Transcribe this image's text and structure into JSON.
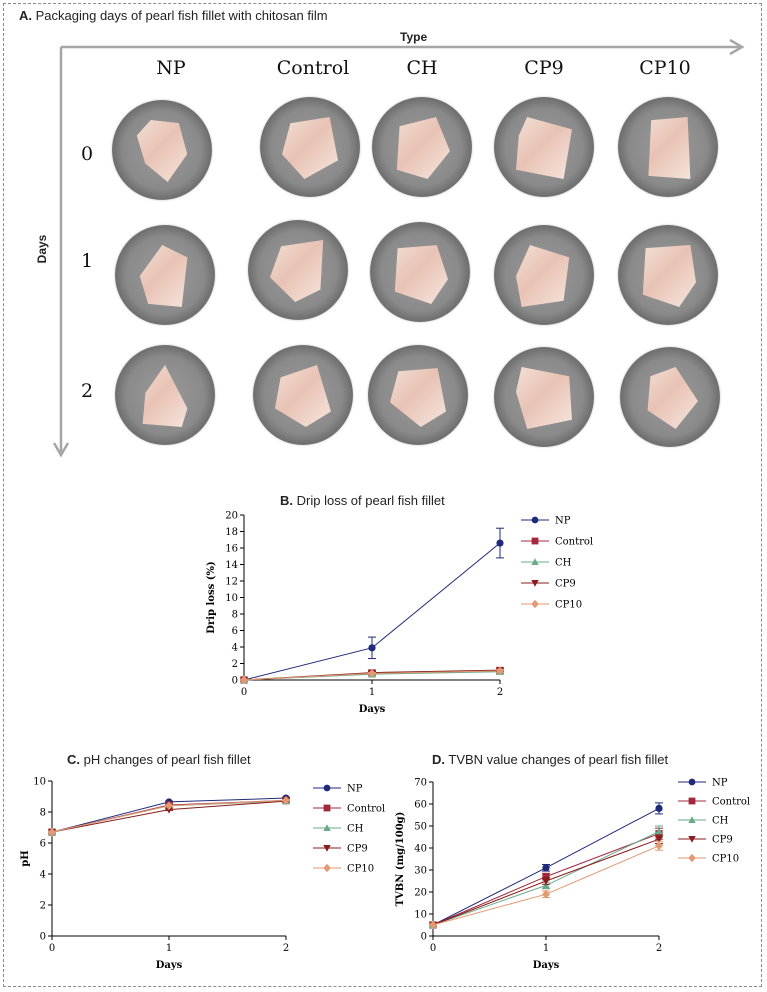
{
  "panel_a": {
    "title_letter": "A.",
    "title_text": "Packaging days of pearl fish fillet with chitosan film",
    "x_axis_label": "Type",
    "y_axis_label": "Days",
    "columns": [
      "NP",
      "Control",
      "CH",
      "CP9",
      "CP10"
    ],
    "rows": [
      "0",
      "1",
      "2"
    ]
  },
  "series_meta": [
    {
      "name": "NP",
      "color": "#1f2a7a",
      "marker": "circle"
    },
    {
      "name": "Control",
      "color": "#a3283e",
      "marker": "square"
    },
    {
      "name": "CH",
      "color": "#6aaa8c",
      "marker": "triangle-up"
    },
    {
      "name": "CP9",
      "color": "#8a1c1c",
      "marker": "triangle-down"
    },
    {
      "name": "CP10",
      "color": "#e19a72",
      "marker": "diamond"
    }
  ],
  "chart_data": [
    {
      "id": "B",
      "type": "line",
      "title_letter": "B.",
      "title": "Drip loss of pearl fish fillet",
      "xlabel": "Days",
      "ylabel": "Drip loss (%)",
      "x": [
        0,
        1,
        2
      ],
      "x_ticks": [
        "0",
        "1",
        "2"
      ],
      "ylim": [
        0,
        20
      ],
      "y_ticks": [
        "0",
        "2",
        "4",
        "6",
        "8",
        "10",
        "12",
        "14",
        "16",
        "18",
        "20"
      ],
      "legend_position": "right",
      "series": [
        {
          "name": "NP",
          "values": [
            0,
            3.9,
            16.6
          ],
          "errors": [
            0,
            1.3,
            1.8
          ]
        },
        {
          "name": "Control",
          "values": [
            0,
            0.8,
            1.1
          ],
          "errors": [
            0,
            0.2,
            0.3
          ]
        },
        {
          "name": "CH",
          "values": [
            0,
            0.7,
            1.0
          ],
          "errors": [
            0,
            0.1,
            0.2
          ]
        },
        {
          "name": "CP9",
          "values": [
            0,
            0.9,
            1.2
          ],
          "errors": [
            0,
            0.2,
            0.2
          ]
        },
        {
          "name": "CP10",
          "values": [
            0,
            0.8,
            1.1
          ],
          "errors": [
            0,
            0.1,
            0.2
          ]
        }
      ]
    },
    {
      "id": "C",
      "type": "line",
      "title_letter": "C.",
      "title": "pH changes of pearl fish fillet",
      "xlabel": "Days",
      "ylabel": "pH",
      "x": [
        0,
        1,
        2
      ],
      "x_ticks": [
        "0",
        "1",
        "2"
      ],
      "ylim": [
        0,
        10
      ],
      "y_ticks": [
        "0",
        "2",
        "4",
        "6",
        "8",
        "10"
      ],
      "legend_position": "right",
      "series": [
        {
          "name": "NP",
          "values": [
            6.7,
            8.65,
            8.9
          ],
          "errors": [
            0,
            0.05,
            0.05
          ]
        },
        {
          "name": "Control",
          "values": [
            6.7,
            8.45,
            8.75
          ],
          "errors": [
            0,
            0.05,
            0.05
          ]
        },
        {
          "name": "CH",
          "values": [
            6.7,
            8.4,
            8.7
          ],
          "errors": [
            0,
            0.05,
            0.05
          ]
        },
        {
          "name": "CP9",
          "values": [
            6.7,
            8.15,
            8.7
          ],
          "errors": [
            0,
            0.05,
            0.05
          ]
        },
        {
          "name": "CP10",
          "values": [
            6.7,
            8.4,
            8.75
          ],
          "errors": [
            0,
            0.05,
            0.05
          ]
        }
      ]
    },
    {
      "id": "D",
      "type": "line",
      "title_letter": "D.",
      "title": "TVBN value changes of pearl fish fillet",
      "xlabel": "Days",
      "ylabel": "TVBN (mg/100g)",
      "x": [
        0,
        1,
        2
      ],
      "x_ticks": [
        "0",
        "1",
        "2"
      ],
      "ylim": [
        0,
        70
      ],
      "y_ticks": [
        "0",
        "10",
        "20",
        "30",
        "40",
        "50",
        "60",
        "70"
      ],
      "legend_position": "right",
      "series": [
        {
          "name": "NP",
          "values": [
            5,
            31,
            58
          ],
          "errors": [
            0.5,
            1.5,
            2.5
          ]
        },
        {
          "name": "Control",
          "values": [
            5,
            27,
            46.5
          ],
          "errors": [
            0.5,
            1.5,
            2.5
          ]
        },
        {
          "name": "CH",
          "values": [
            5,
            23,
            47.5
          ],
          "errors": [
            0.5,
            1.5,
            2.5
          ]
        },
        {
          "name": "CP9",
          "values": [
            5,
            25,
            44
          ],
          "errors": [
            0.5,
            1.5,
            2
          ]
        },
        {
          "name": "CP10",
          "values": [
            5,
            19,
            41
          ],
          "errors": [
            0.5,
            1.5,
            2
          ]
        }
      ]
    }
  ]
}
